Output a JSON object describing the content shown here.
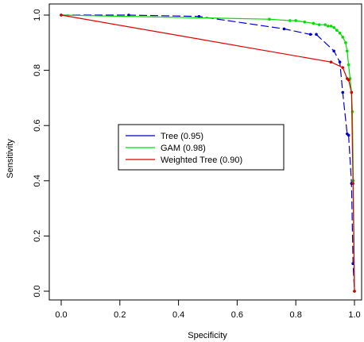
{
  "chart_data": {
    "type": "line",
    "title": "",
    "xlabel": "Specificity",
    "ylabel": "Sensitivity",
    "xlim": [
      0,
      1
    ],
    "ylim": [
      0,
      1
    ],
    "x_ticks": [
      "0.0",
      "0.2",
      "0.4",
      "0.6",
      "0.8",
      "1.0"
    ],
    "y_ticks": [
      "0.0",
      "0.2",
      "0.4",
      "0.6",
      "0.8",
      "1.0"
    ],
    "grid": false,
    "legend_position": "center",
    "series": [
      {
        "name": "Tree (0.95)",
        "color": "#0000cc",
        "x": [
          0.0,
          0.23,
          0.47,
          0.76,
          0.85,
          0.87,
          0.93,
          0.95,
          0.96,
          0.975,
          0.98,
          0.99,
          0.995,
          1.0
        ],
        "y": [
          1.0,
          1.0,
          0.995,
          0.95,
          0.93,
          0.93,
          0.87,
          0.83,
          0.72,
          0.57,
          0.565,
          0.39,
          0.1,
          0.0
        ]
      },
      {
        "name": "GAM (0.98)",
        "color": "#00dd00",
        "x": [
          0.0,
          0.71,
          0.78,
          0.8,
          0.83,
          0.86,
          0.88,
          0.9,
          0.91,
          0.92,
          0.93,
          0.94,
          0.95,
          0.96,
          0.97,
          0.975,
          0.98,
          0.985,
          0.99,
          0.993,
          0.996,
          1.0
        ],
        "y": [
          1.0,
          0.985,
          0.98,
          0.98,
          0.975,
          0.97,
          0.965,
          0.965,
          0.96,
          0.96,
          0.955,
          0.945,
          0.935,
          0.92,
          0.9,
          0.87,
          0.82,
          0.77,
          0.72,
          0.65,
          0.4,
          0.0
        ]
      },
      {
        "name": "Weighted Tree (0.90)",
        "color": "#dd0000",
        "x": [
          0.0,
          0.92,
          0.96,
          0.975,
          0.98,
          0.99,
          0.995,
          1.0
        ],
        "y": [
          1.0,
          0.83,
          0.81,
          0.77,
          0.765,
          0.72,
          0.39,
          0.0
        ]
      }
    ]
  }
}
